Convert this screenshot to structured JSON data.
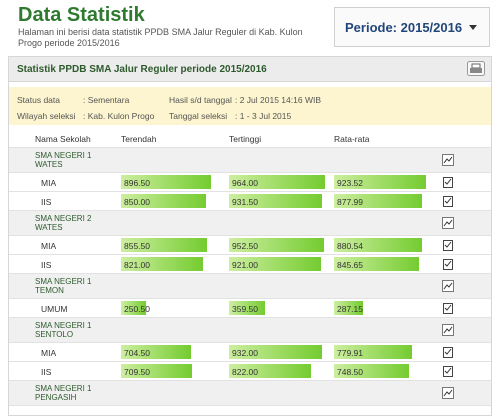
{
  "header": {
    "title": "Data Statistik",
    "subtitle": "Halaman ini berisi data statistik PPDB SMA Jalur Reguler di Kab. Kulon Progo periode 2015/2016"
  },
  "period": {
    "label": "Periode: 2015/2016"
  },
  "panel": {
    "title": "Statistik PPDB SMA Jalur Reguler periode 2015/2016"
  },
  "info": [
    {
      "label": "Status data",
      "value": ": Sementara"
    },
    {
      "label": "Hasil s/d tanggal",
      "value": ": 2 Jul 2015 14:16 WIB"
    },
    {
      "label": "Wilayah seleksi",
      "value": ": Kab. Kulon Progo"
    },
    {
      "label": "Tanggal seleksi",
      "value": ": 1 - 3 Jul 2015"
    }
  ],
  "table": {
    "columns": [
      "Nama Sekolah",
      "Terendah",
      "Tertinggi",
      "Rata-rata"
    ],
    "schools": [
      {
        "name": "SMA NEGERI 1 WATES",
        "rows": [
          {
            "name": "MIA",
            "low": "896.50",
            "high": "964.00",
            "avg": "923.52"
          },
          {
            "name": "IIS",
            "low": "850.00",
            "high": "931.50",
            "avg": "877.99"
          }
        ]
      },
      {
        "name": "SMA NEGERI 2 WATES",
        "rows": [
          {
            "name": "MIA",
            "low": "855.50",
            "high": "952.50",
            "avg": "880.54"
          },
          {
            "name": "IIS",
            "low": "821.00",
            "high": "921.00",
            "avg": "845.65"
          }
        ]
      },
      {
        "name": "SMA NEGERI 1 TEMON",
        "rows": [
          {
            "name": "UMUM",
            "low": "250.50",
            "high": "359.50",
            "avg": "287.15"
          }
        ]
      },
      {
        "name": "SMA NEGERI 1 SENTOLO",
        "rows": [
          {
            "name": "MIA",
            "low": "704.50",
            "high": "932.00",
            "avg": "779.91"
          },
          {
            "name": "IIS",
            "low": "709.50",
            "high": "822.00",
            "avg": "748.50"
          }
        ]
      },
      {
        "name": "SMA NEGERI 1 PENGASIH",
        "rows": []
      }
    ]
  }
}
